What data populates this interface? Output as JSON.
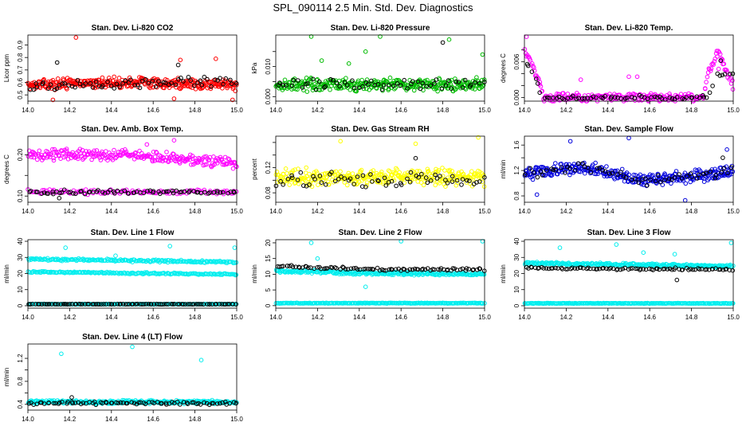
{
  "figure": {
    "title": "SPL_090114  2.5 Min. Std. Dev. Diagnostics"
  },
  "chart_data": [
    {
      "type": "scatter",
      "title": "Stan. Dev. Li-820 CO2",
      "ylabel": "Licor ppm",
      "xlim": [
        14.0,
        15.0
      ],
      "ylim": [
        0.45,
        0.98
      ],
      "x_ticks": [
        "14.0",
        "14.2",
        "14.4",
        "14.6",
        "14.8",
        "15.0"
      ],
      "y_ticks": [
        0.5,
        0.6,
        0.7,
        0.8,
        0.9
      ],
      "y_tick_labels": [
        "0.5",
        "0.6",
        "0.7",
        "0.8",
        "0.9"
      ],
      "series": [
        {
          "color": "#ff0000",
          "trend": [
            [
              14.0,
              0.58
            ],
            [
              14.5,
              0.6
            ],
            [
              15.0,
              0.58
            ]
          ],
          "spread": 0.05,
          "count": 340,
          "outliers": [
            [
              14.23,
              0.96
            ],
            [
              14.73,
              0.78
            ],
            [
              14.9,
              0.79
            ],
            [
              14.98,
              0.46
            ],
            [
              14.7,
              0.47
            ],
            [
              14.12,
              0.46
            ]
          ]
        },
        {
          "color": "#000000",
          "trend": [
            [
              14.0,
              0.57
            ],
            [
              14.5,
              0.6
            ],
            [
              15.0,
              0.6
            ]
          ],
          "spread": 0.05,
          "count": 70,
          "outliers": [
            [
              14.14,
              0.76
            ],
            [
              14.72,
              0.74
            ]
          ]
        }
      ]
    },
    {
      "type": "scatter",
      "title": "Stan. Dev. Li-820 Pressure",
      "ylabel": "kPa",
      "xlim": [
        14.0,
        15.0
      ],
      "ylim": [
        -0.0015,
        0.0205
      ],
      "x_ticks": [
        "14.0",
        "14.2",
        "14.4",
        "14.6",
        "14.8",
        "15.0"
      ],
      "y_ticks": [
        0.0,
        0.005,
        0.01,
        0.015
      ],
      "y_tick_labels": [
        "0.000",
        "",
        "0.010",
        ""
      ],
      "series": [
        {
          "color": "#00bb00",
          "trend": [
            [
              14.0,
              0.004
            ],
            [
              15.0,
              0.004
            ]
          ],
          "spread": 0.0025,
          "count": 330,
          "outliers": [
            [
              14.17,
              0.02
            ],
            [
              14.5,
              0.02
            ],
            [
              14.43,
              0.015
            ],
            [
              14.83,
              0.019
            ],
            [
              14.99,
              0.014
            ],
            [
              14.35,
              0.011
            ],
            [
              14.22,
              0.012
            ]
          ]
        },
        {
          "color": "#000000",
          "trend": [
            [
              14.0,
              0.004
            ],
            [
              15.0,
              0.004
            ]
          ],
          "spread": 0.0022,
          "count": 60,
          "outliers": [
            [
              14.8,
              0.018
            ]
          ]
        }
      ]
    },
    {
      "type": "scatter",
      "title": "Stan. Dev. Li-820 Temp.",
      "ylabel": "degrees C",
      "xlim": [
        14.0,
        15.0
      ],
      "ylim": [
        -0.0006,
        0.0105
      ],
      "x_ticks": [
        "14.0",
        "14.2",
        "14.4",
        "14.6",
        "14.8",
        "15.0"
      ],
      "y_ticks": [
        0.0,
        0.002,
        0.004,
        0.006,
        0.008
      ],
      "y_tick_labels": [
        "0.000",
        "",
        "",
        "0.006",
        ""
      ],
      "series": [
        {
          "color": "#ff00ff",
          "trend": [
            [
              14.0,
              0.008
            ],
            [
              14.03,
              0.006
            ],
            [
              14.07,
              0.003
            ],
            [
              14.09,
              0.0
            ],
            [
              14.86,
              0.0
            ],
            [
              14.88,
              0.004
            ],
            [
              14.93,
              0.008
            ],
            [
              14.96,
              0.005
            ],
            [
              15.0,
              0.002
            ]
          ],
          "spread": 0.0008,
          "count": 260,
          "outliers": [
            [
              14.01,
              0.0102
            ],
            [
              14.27,
              0.003
            ],
            [
              14.5,
              0.0035
            ],
            [
              14.54,
              0.0035
            ],
            [
              14.93,
              0.0048
            ]
          ]
        },
        {
          "color": "#000000",
          "trend": [
            [
              14.0,
              0.006
            ],
            [
              14.05,
              0.004
            ],
            [
              14.08,
              0.0
            ],
            [
              14.88,
              0.0
            ],
            [
              14.92,
              0.004
            ],
            [
              15.0,
              0.004
            ]
          ],
          "spread": 0.0004,
          "count": 70,
          "outliers": [
            [
              14.94,
              0.0062
            ]
          ]
        }
      ]
    },
    {
      "type": "scatter",
      "title": "Stan. Dev. Amb. Box Temp.",
      "ylabel": "degrees C",
      "xlim": [
        14.0,
        15.0
      ],
      "ylim": [
        0.085,
        0.245
      ],
      "x_ticks": [
        "14.0",
        "14.2",
        "14.4",
        "14.6",
        "14.8",
        "15.0"
      ],
      "y_ticks": [
        0.1,
        0.15,
        0.2
      ],
      "y_tick_labels": [
        "0.10",
        "",
        "0.20"
      ],
      "series": [
        {
          "color": "#ff00ff",
          "trend": [
            [
              14.0,
              0.2
            ],
            [
              14.5,
              0.2
            ],
            [
              15.0,
              0.18
            ]
          ],
          "spread": 0.015,
          "count": 260,
          "outliers": [
            [
              14.7,
              0.235
            ],
            [
              14.57,
              0.225
            ]
          ]
        },
        {
          "color": "#ff00ff",
          "trend": [
            [
              14.0,
              0.11
            ],
            [
              15.0,
              0.11
            ]
          ],
          "spread": 0.007,
          "count": 130,
          "outliers": []
        },
        {
          "color": "#000000",
          "trend": [
            [
              14.0,
              0.11
            ],
            [
              15.0,
              0.11
            ]
          ],
          "spread": 0.006,
          "count": 75,
          "outliers": [
            [
              14.15,
              0.095
            ]
          ]
        }
      ]
    },
    {
      "type": "scatter",
      "title": "Stan. Dev. Gas Stream RH",
      "ylabel": "percent",
      "xlim": [
        14.0,
        15.0
      ],
      "ylim": [
        0.065,
        0.17
      ],
      "x_ticks": [
        "14.0",
        "14.2",
        "14.4",
        "14.6",
        "14.8",
        "15.0"
      ],
      "y_ticks": [
        0.08,
        0.1,
        0.12,
        0.14,
        0.16
      ],
      "y_tick_labels": [
        "0.08",
        "",
        "0.12",
        "",
        ""
      ],
      "series": [
        {
          "color": "#ffff00",
          "trend": [
            [
              14.0,
              0.105
            ],
            [
              15.0,
              0.105
            ]
          ],
          "spread": 0.016,
          "count": 330,
          "outliers": [
            [
              14.97,
              0.168
            ],
            [
              14.31,
              0.162
            ],
            [
              14.67,
              0.158
            ]
          ]
        },
        {
          "color": "#000000",
          "trend": [
            [
              14.0,
              0.1
            ],
            [
              15.0,
              0.1
            ]
          ],
          "spread": 0.014,
          "count": 65,
          "outliers": [
            [
              14.67,
              0.135
            ]
          ]
        }
      ]
    },
    {
      "type": "scatter",
      "title": "Stan. Dev. Sample Flow",
      "ylabel": "ml/min",
      "xlim": [
        14.0,
        15.0
      ],
      "ylim": [
        0.7,
        1.74
      ],
      "x_ticks": [
        "14.0",
        "14.2",
        "14.4",
        "14.6",
        "14.8",
        "15.0"
      ],
      "y_ticks": [
        0.8,
        1.0,
        1.2,
        1.4,
        1.6
      ],
      "y_tick_labels": [
        "0.8",
        "",
        "1.2",
        "",
        "1.6"
      ],
      "series": [
        {
          "color": "#0000dd",
          "trend": [
            [
              14.0,
              1.15
            ],
            [
              14.3,
              1.25
            ],
            [
              14.55,
              1.05
            ],
            [
              14.8,
              1.1
            ],
            [
              15.0,
              1.2
            ]
          ],
          "spread": 0.12,
          "count": 330,
          "outliers": [
            [
              14.5,
              1.71
            ],
            [
              14.22,
              1.66
            ],
            [
              14.97,
              1.53
            ],
            [
              14.77,
              0.73
            ],
            [
              14.06,
              0.82
            ]
          ]
        },
        {
          "color": "#000000",
          "trend": [
            [
              14.0,
              1.15
            ],
            [
              14.3,
              1.25
            ],
            [
              14.55,
              1.05
            ],
            [
              14.8,
              1.1
            ],
            [
              15.0,
              1.2
            ]
          ],
          "spread": 0.1,
          "count": 60,
          "outliers": [
            [
              14.95,
              1.4
            ]
          ]
        }
      ]
    },
    {
      "type": "scatter",
      "title": "Stan. Dev. Line 1 Flow",
      "ylabel": "ml/min",
      "xlim": [
        14.0,
        15.0
      ],
      "ylim": [
        -1.5,
        41
      ],
      "x_ticks": [
        "14.0",
        "14.2",
        "14.4",
        "14.6",
        "14.8",
        "15.0"
      ],
      "y_ticks": [
        0,
        10,
        20,
        30,
        40
      ],
      "y_tick_labels": [
        "0",
        "10",
        "20",
        "30",
        "40"
      ],
      "series": [
        {
          "color": "#00eeee",
          "trend": [
            [
              14.0,
              29
            ],
            [
              14.5,
              28
            ],
            [
              15.0,
              27
            ]
          ],
          "spread": 0.9,
          "count": 200,
          "outliers": [
            [
              14.18,
              36
            ],
            [
              14.68,
              37
            ],
            [
              14.99,
              36
            ],
            [
              14.42,
              31
            ]
          ]
        },
        {
          "color": "#00eeee",
          "trend": [
            [
              14.0,
              21
            ],
            [
              15.0,
              19.5
            ]
          ],
          "spread": 0.6,
          "count": 200,
          "outliers": []
        },
        {
          "color": "#00eeee",
          "trend": [
            [
              14.0,
              1
            ],
            [
              15.0,
              1
            ]
          ],
          "spread": 0.15,
          "count": 200,
          "outliers": []
        },
        {
          "color": "#000000",
          "trend": [
            [
              14.0,
              1
            ],
            [
              15.0,
              1
            ]
          ],
          "spread": 0.12,
          "count": 100,
          "outliers": []
        }
      ]
    },
    {
      "type": "scatter",
      "title": "Stan. Dev. Line 2 Flow",
      "ylabel": "ml/min",
      "xlim": [
        14.0,
        15.0
      ],
      "ylim": [
        -0.8,
        21
      ],
      "x_ticks": [
        "14.0",
        "14.2",
        "14.4",
        "14.6",
        "14.8",
        "15.0"
      ],
      "y_ticks": [
        0,
        5,
        10,
        15,
        20
      ],
      "y_tick_labels": [
        "0",
        "5",
        "10",
        "15",
        "20"
      ],
      "series": [
        {
          "color": "#00eeee",
          "trend": [
            [
              14.0,
              11
            ],
            [
              14.5,
              10.3
            ],
            [
              15.0,
              10
            ]
          ],
          "spread": 0.6,
          "count": 260,
          "outliers": [
            [
              14.17,
              20
            ],
            [
              14.6,
              20.5
            ],
            [
              14.99,
              20.5
            ],
            [
              14.43,
              6
            ],
            [
              14.2,
              15
            ]
          ]
        },
        {
          "color": "#00eeee",
          "trend": [
            [
              14.0,
              0.8
            ],
            [
              15.0,
              0.8
            ]
          ],
          "spread": 0.12,
          "count": 220,
          "outliers": []
        },
        {
          "color": "#000000",
          "trend": [
            [
              14.0,
              12.5
            ],
            [
              14.5,
              11.5
            ],
            [
              15.0,
              11.5
            ]
          ],
          "spread": 0.5,
          "count": 90,
          "outliers": []
        }
      ]
    },
    {
      "type": "scatter",
      "title": "Stan. Dev. Line 3 Flow",
      "ylabel": "ml/min",
      "xlim": [
        14.0,
        15.0
      ],
      "ylim": [
        -1.5,
        41
      ],
      "x_ticks": [
        "14.0",
        "14.2",
        "14.4",
        "14.6",
        "14.8",
        "15.0"
      ],
      "y_ticks": [
        0,
        10,
        20,
        30,
        40
      ],
      "y_tick_labels": [
        "0",
        "10",
        "20",
        "30",
        "40"
      ],
      "series": [
        {
          "color": "#00eeee",
          "trend": [
            [
              14.0,
              26.5
            ],
            [
              14.5,
              25.5
            ],
            [
              15.0,
              24.5
            ]
          ],
          "spread": 1.0,
          "count": 260,
          "outliers": [
            [
              14.17,
              36
            ],
            [
              14.99,
              39
            ],
            [
              14.44,
              38
            ],
            [
              14.57,
              33
            ],
            [
              14.72,
              32
            ]
          ]
        },
        {
          "color": "#00eeee",
          "trend": [
            [
              14.0,
              1.5
            ],
            [
              15.0,
              1.5
            ]
          ],
          "spread": 0.2,
          "count": 220,
          "outliers": []
        },
        {
          "color": "#000000",
          "trend": [
            [
              14.0,
              23.5
            ],
            [
              15.0,
              22.5
            ]
          ],
          "spread": 0.9,
          "count": 90,
          "outliers": [
            [
              14.73,
              16
            ]
          ]
        }
      ]
    },
    {
      "type": "scatter",
      "title": "Stan. Dev. Line 4 (LT) Flow",
      "ylabel": "ml/min",
      "xlim": [
        14.0,
        15.0
      ],
      "ylim": [
        0.3,
        1.45
      ],
      "x_ticks": [
        "14.0",
        "14.2",
        "14.4",
        "14.6",
        "14.8",
        "15.0"
      ],
      "y_ticks": [
        0.4,
        0.6,
        0.8,
        1.0,
        1.2
      ],
      "y_tick_labels": [
        "0.4",
        "",
        "0.8",
        "",
        "1.2"
      ],
      "series": [
        {
          "color": "#00eeee",
          "trend": [
            [
              14.0,
              0.44
            ],
            [
              15.0,
              0.44
            ]
          ],
          "spread": 0.035,
          "count": 320,
          "outliers": [
            [
              14.5,
              1.4
            ],
            [
              14.16,
              1.28
            ],
            [
              14.83,
              1.17
            ]
          ]
        },
        {
          "color": "#000000",
          "trend": [
            [
              14.0,
              0.42
            ],
            [
              15.0,
              0.42
            ]
          ],
          "spread": 0.03,
          "count": 80,
          "outliers": [
            [
              14.21,
              0.52
            ]
          ]
        }
      ]
    }
  ]
}
